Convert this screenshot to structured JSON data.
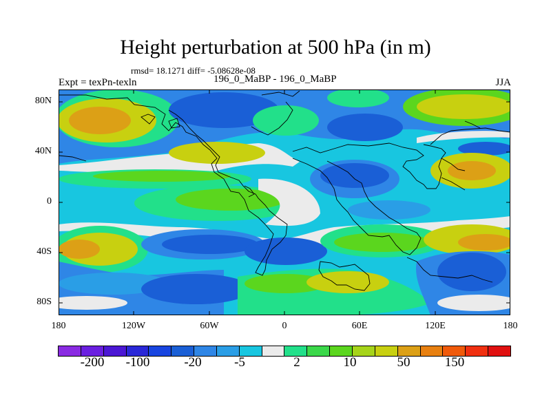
{
  "title": "Height perturbation at 500 hPa (in m)",
  "stats": "rmsd= 18.1271 diff= -5.08628e-08",
  "expt_label": "Expt = texPn-texln",
  "center_label": "196_0_MaBP - 196_0_MaBP",
  "season": "JJA",
  "colors": {
    "neg_strong": "#1a5fd6",
    "neg_mid": "#2f86e6",
    "neg_weak": "#18c6e0",
    "near_zero": "#ebebeb",
    "pos_weak": "#22e08a",
    "pos_mid": "#5bd61e",
    "pos_warm": "#c8d010",
    "pos_strong": "#dca016"
  },
  "y_axis": {
    "ticks": [
      "80N",
      "40N",
      "0",
      "40S",
      "80S"
    ]
  },
  "x_axis": {
    "ticks": [
      "180",
      "120W",
      "60W",
      "0",
      "60E",
      "120E",
      "180"
    ]
  },
  "colorbar": {
    "colors": [
      "#8a2be2",
      "#6a1fe0",
      "#4b17d4",
      "#2a28d8",
      "#1845e0",
      "#1a5fd6",
      "#2f86e6",
      "#2a9ee6",
      "#18c6e0",
      "#ebebeb",
      "#22e08a",
      "#3bd84a",
      "#5bd61e",
      "#a6d41a",
      "#c8d010",
      "#dca016",
      "#e88010",
      "#f05a0a",
      "#f03010",
      "#e01010"
    ],
    "labels": [
      "-200",
      "-100",
      "-20",
      "-5",
      "2",
      "10",
      "50",
      "150"
    ]
  }
}
